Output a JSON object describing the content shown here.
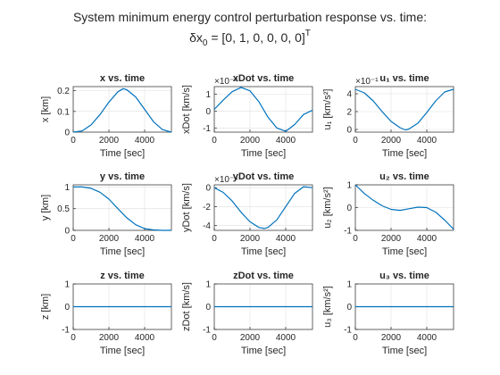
{
  "figure": {
    "title_line1": "System minimum energy control perturbation response vs. time:",
    "title_line2_prefix": "δx",
    "title_line2_sub": "0",
    "title_line2_value": " = [0, 1, 0, 0, 0, 0]",
    "title_line2_sup": "T"
  },
  "colors": {
    "line": "#0072BD",
    "axis": "#262626",
    "grid": "#dfdfdf"
  },
  "chart_data": [
    {
      "type": "line",
      "title": "x vs. time",
      "xlabel": "Time [sec]",
      "ylabel": "x [km]",
      "xlim": [
        0,
        5500
      ],
      "ylim": [
        0,
        0.22
      ],
      "xticks": [
        0,
        2000,
        4000
      ],
      "yticks": [
        0,
        0.1,
        0.2
      ],
      "ytick_labels": [
        "0",
        "0.1",
        "0.2"
      ],
      "exponent_label": "",
      "x": [
        0,
        500,
        1000,
        1500,
        2000,
        2500,
        2800,
        3000,
        3500,
        4000,
        4500,
        5000,
        5500
      ],
      "y": [
        0,
        0.006,
        0.035,
        0.085,
        0.145,
        0.195,
        0.21,
        0.205,
        0.17,
        0.11,
        0.05,
        0.012,
        0
      ]
    },
    {
      "type": "line",
      "title": "xDot vs. time",
      "xlabel": "Time [sec]",
      "ylabel": "xDot [km/s]",
      "xlim": [
        0,
        5500
      ],
      "ylim": [
        -1.25,
        1.45
      ],
      "xticks": [
        0,
        2000,
        4000
      ],
      "yticks": [
        -1,
        0,
        1
      ],
      "ytick_labels": [
        "-1",
        "0",
        "1"
      ],
      "exponent_label": "×10⁻⁴",
      "x": [
        0,
        500,
        1000,
        1500,
        2000,
        2500,
        3000,
        3500,
        4000,
        4500,
        5000,
        5500
      ],
      "y": [
        0.1,
        0.65,
        1.15,
        1.4,
        1.2,
        0.55,
        -0.35,
        -1.0,
        -1.2,
        -0.8,
        -0.2,
        0.05
      ]
    },
    {
      "type": "line",
      "title": "u₁ vs. time",
      "xlabel": "Time [sec]",
      "ylabel": "u₁ [km/s²]",
      "xlim": [
        0,
        5500
      ],
      "ylim": [
        -0.3,
        4.8
      ],
      "xticks": [
        0,
        2000,
        4000
      ],
      "yticks": [
        0,
        2,
        4
      ],
      "ytick_labels": [
        "0",
        "2",
        "4"
      ],
      "exponent_label": "×10⁻¹",
      "x": [
        0,
        500,
        1000,
        1500,
        2000,
        2500,
        2800,
        3000,
        3500,
        4000,
        4500,
        5000,
        5500
      ],
      "y": [
        4.5,
        4.1,
        3.2,
        2.0,
        0.9,
        0.2,
        -0.05,
        0.05,
        0.7,
        1.9,
        3.2,
        4.2,
        4.5
      ]
    },
    {
      "type": "line",
      "title": "y vs. time",
      "xlabel": "Time [sec]",
      "ylabel": "y [km]",
      "xlim": [
        0,
        5500
      ],
      "ylim": [
        0,
        1.05
      ],
      "xticks": [
        0,
        2000,
        4000
      ],
      "yticks": [
        0,
        0.5,
        1
      ],
      "ytick_labels": [
        "0",
        "0.5",
        "1"
      ],
      "exponent_label": "",
      "x": [
        0,
        500,
        1000,
        1500,
        2000,
        2500,
        3000,
        3500,
        4000,
        4500,
        5000,
        5500
      ],
      "y": [
        1.0,
        1.0,
        0.97,
        0.88,
        0.72,
        0.5,
        0.29,
        0.13,
        0.04,
        0.01,
        0.0,
        0.0
      ]
    },
    {
      "type": "line",
      "title": "yDot vs. time",
      "xlabel": "Time [sec]",
      "ylabel": "yDot [km/s]",
      "xlim": [
        0,
        5500
      ],
      "ylim": [
        -4.5,
        0.3
      ],
      "xticks": [
        0,
        2000,
        4000
      ],
      "yticks": [
        -4,
        -2,
        0
      ],
      "ytick_labels": [
        "-4",
        "-2",
        "0"
      ],
      "exponent_label": "×10⁻⁴",
      "x": [
        0,
        500,
        1000,
        1500,
        2000,
        2500,
        2800,
        3000,
        3500,
        4000,
        4500,
        5000,
        5500
      ],
      "y": [
        0,
        -0.5,
        -1.4,
        -2.6,
        -3.6,
        -4.2,
        -4.3,
        -4.2,
        -3.4,
        -2.0,
        -0.6,
        0.1,
        0
      ]
    },
    {
      "type": "line",
      "title": "u₂ vs. time",
      "xlabel": "Time [sec]",
      "ylabel": "u₂ [km/s²]",
      "xlim": [
        0,
        5500
      ],
      "ylim": [
        -1,
        1
      ],
      "xticks": [
        0,
        2000,
        4000
      ],
      "yticks": [
        -1,
        0,
        1
      ],
      "ytick_labels": [
        "-1",
        "0",
        "1"
      ],
      "exponent_label": "",
      "x": [
        0,
        500,
        1000,
        1500,
        2000,
        2500,
        3000,
        3500,
        4000,
        4500,
        5000,
        5500
      ],
      "y": [
        1.0,
        0.62,
        0.32,
        0.08,
        -0.08,
        -0.12,
        -0.05,
        0.02,
        0.0,
        -0.2,
        -0.55,
        -0.95
      ]
    },
    {
      "type": "line",
      "title": "z vs. time",
      "xlabel": "Time [sec]",
      "ylabel": "z [km]",
      "xlim": [
        0,
        5500
      ],
      "ylim": [
        -1,
        1
      ],
      "xticks": [
        0,
        2000,
        4000
      ],
      "yticks": [
        -1,
        0,
        1
      ],
      "ytick_labels": [
        "-1",
        "0",
        "1"
      ],
      "exponent_label": "",
      "x": [
        0,
        5500
      ],
      "y": [
        0,
        0
      ]
    },
    {
      "type": "line",
      "title": "zDot vs. time",
      "xlabel": "Time [sec]",
      "ylabel": "zDot [km/s]",
      "xlim": [
        0,
        5500
      ],
      "ylim": [
        -1,
        1
      ],
      "xticks": [
        0,
        2000,
        4000
      ],
      "yticks": [
        -1,
        0,
        1
      ],
      "ytick_labels": [
        "-1",
        "0",
        "1"
      ],
      "exponent_label": "",
      "x": [
        0,
        5500
      ],
      "y": [
        0,
        0
      ]
    },
    {
      "type": "line",
      "title": "u₃ vs. time",
      "xlabel": "Time [sec]",
      "ylabel": "u₃ [km/s²]",
      "xlim": [
        0,
        5500
      ],
      "ylim": [
        -1,
        1
      ],
      "xticks": [
        0,
        2000,
        4000
      ],
      "yticks": [
        -1,
        0,
        1
      ],
      "ytick_labels": [
        "-1",
        "0",
        "1"
      ],
      "exponent_label": "",
      "x": [
        0,
        5500
      ],
      "y": [
        0,
        0
      ]
    }
  ]
}
